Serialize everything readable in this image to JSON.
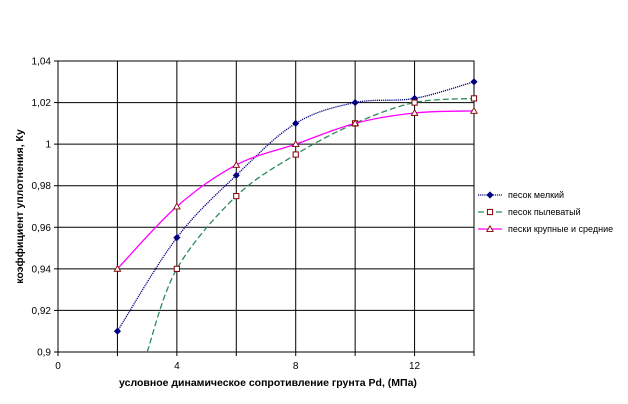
{
  "chart_data": {
    "type": "line",
    "title": "",
    "xlabel": "условное динамическое сопротивление грунта Pd, (МПа)",
    "ylabel": "коэффициент уплотнения, Ку",
    "xlim": [
      0,
      14
    ],
    "ylim": [
      0.9,
      1.04
    ],
    "x_ticks": [
      0,
      4,
      8,
      12
    ],
    "x_tick_labels": [
      "0",
      "4",
      "8",
      "12"
    ],
    "y_ticks": [
      0.9,
      0.92,
      0.94,
      0.96,
      0.98,
      1.0,
      1.02,
      1.04
    ],
    "y_tick_labels": [
      "0,9",
      "0,92",
      "0,94",
      "0,96",
      "0,98",
      "1",
      "1,02",
      "1,04"
    ],
    "grid": true,
    "legend_position": "right",
    "series": [
      {
        "name": "песок мелкий",
        "color": "#000080",
        "line_style": "dotted-dense",
        "marker": "diamond",
        "x": [
          2,
          4,
          6,
          8,
          10,
          12,
          14
        ],
        "values": [
          0.91,
          0.955,
          0.985,
          1.01,
          1.02,
          1.022,
          1.03
        ]
      },
      {
        "name": "песок пылеватый",
        "color": "#2E8B57",
        "line_style": "dashed",
        "marker": "square",
        "x": [
          3,
          4,
          6,
          8,
          10,
          12,
          14
        ],
        "values": [
          0.9,
          0.94,
          0.975,
          0.995,
          1.01,
          1.02,
          1.022
        ]
      },
      {
        "name": "пески крупные и средние",
        "color": "#FF00FF",
        "line_style": "solid",
        "marker": "triangle",
        "x": [
          2,
          4,
          6,
          8,
          10,
          12,
          14
        ],
        "values": [
          0.94,
          0.97,
          0.99,
          1.0,
          1.01,
          1.015,
          1.016
        ]
      }
    ]
  }
}
